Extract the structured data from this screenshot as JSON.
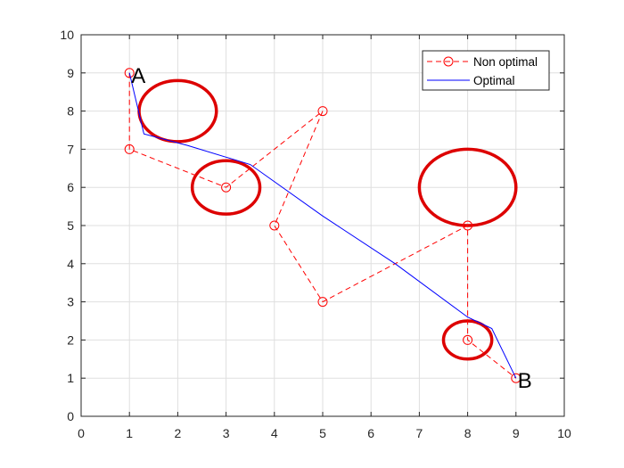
{
  "chart_data": {
    "type": "line",
    "xlim": [
      0,
      10
    ],
    "ylim": [
      0,
      10
    ],
    "xticks": [
      "0",
      "1",
      "2",
      "3",
      "4",
      "5",
      "6",
      "7",
      "8",
      "9",
      "10"
    ],
    "yticks": [
      "0",
      "1",
      "2",
      "3",
      "4",
      "5",
      "6",
      "7",
      "8",
      "9",
      "10"
    ],
    "grid": true,
    "legend_position": "top-right",
    "series": [
      {
        "name": "Non optimal",
        "style": "dashed",
        "marker": "circle",
        "color": "#ff0000",
        "x": [
          1,
          1,
          3,
          5,
          4,
          5,
          8,
          8,
          9
        ],
        "y": [
          9,
          7,
          6,
          8,
          5,
          3,
          5,
          2,
          1
        ]
      },
      {
        "name": "Optimal",
        "style": "solid",
        "marker": "none",
        "color": "#0000ff",
        "x": [
          1,
          1.3,
          2.2,
          3.5,
          5.0,
          6.5,
          8.0,
          8.5,
          9.0
        ],
        "y": [
          9,
          7.4,
          7.1,
          6.6,
          5.25,
          4.0,
          2.6,
          2.3,
          1.0
        ]
      }
    ],
    "obstacles": [
      {
        "cx": 2,
        "cy": 8,
        "r": 0.8
      },
      {
        "cx": 3,
        "cy": 6,
        "r": 0.7
      },
      {
        "cx": 8,
        "cy": 6,
        "r": 1.0
      },
      {
        "cx": 8,
        "cy": 2,
        "r": 0.5
      }
    ],
    "obstacle_color": "#dd0000",
    "point_labels": [
      {
        "text": "A",
        "x": 1,
        "y": 9
      },
      {
        "text": "B",
        "x": 9,
        "y": 1
      }
    ]
  }
}
